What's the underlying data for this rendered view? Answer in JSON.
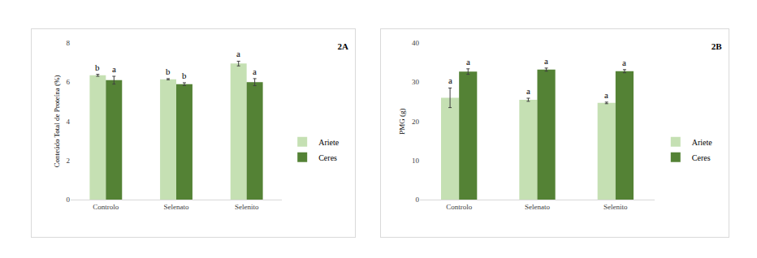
{
  "chart_data": [
    {
      "type": "bar",
      "title": "2A",
      "y_label": "Conteúdo Total de Proteína (%)",
      "categories": [
        "Controlo",
        "Selenato",
        "Selenito"
      ],
      "series": [
        {
          "name": "Ariete",
          "color": "#c5e0b3",
          "values": [
            6.35,
            6.15,
            6.95
          ],
          "errors": [
            0.05,
            0.03,
            0.12
          ],
          "letters": [
            "b",
            "b",
            "a"
          ]
        },
        {
          "name": "Ceres",
          "color": "#548235",
          "values": [
            6.1,
            5.9,
            6.0
          ],
          "errors": [
            0.2,
            0.07,
            0.18
          ],
          "letters": [
            "a",
            "b",
            "a"
          ]
        }
      ],
      "ylim": [
        0,
        8
      ],
      "yticks": [
        0,
        2,
        4,
        6,
        8
      ],
      "grid": false,
      "legend": "right"
    },
    {
      "type": "bar",
      "title": "2B",
      "y_label": "PMG (g)",
      "categories": [
        "Controlo",
        "Selenato",
        "Selenito"
      ],
      "series": [
        {
          "name": "Ariete",
          "color": "#c5e0b3",
          "values": [
            26.0,
            25.5,
            24.7
          ],
          "errors": [
            2.5,
            0.4,
            0.2
          ],
          "letters": [
            "a",
            "a",
            "a"
          ]
        },
        {
          "name": "Ceres",
          "color": "#548235",
          "values": [
            32.7,
            33.2,
            32.8
          ],
          "errors": [
            0.7,
            0.4,
            0.4
          ],
          "letters": [
            "a",
            "a",
            "a"
          ]
        }
      ],
      "ylim": [
        0,
        40
      ],
      "yticks": [
        0,
        10,
        20,
        30,
        40
      ],
      "grid": false,
      "legend": "right"
    }
  ]
}
